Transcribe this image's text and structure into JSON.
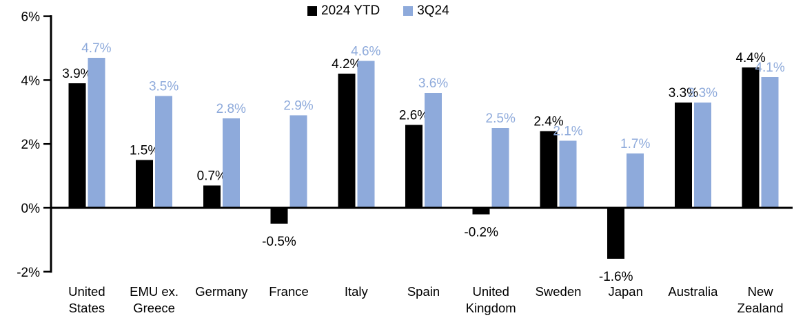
{
  "chart_data": {
    "type": "bar",
    "title": "",
    "xlabel": "",
    "ylabel": "",
    "ylim": [
      -2,
      6
    ],
    "grid": false,
    "legend_position": "top-center",
    "axis_color": "#000000",
    "background_color": "#ffffff",
    "yticks": [
      {
        "value": 6,
        "label": "6%"
      },
      {
        "value": 4,
        "label": "4%"
      },
      {
        "value": 2,
        "label": "2%"
      },
      {
        "value": 0,
        "label": "0%"
      },
      {
        "value": -2,
        "label": "-2%"
      }
    ],
    "categories": [
      "United States",
      "EMU ex. Greece",
      "Germany",
      "France",
      "Italy",
      "Spain",
      "United Kingdom",
      "Sweden",
      "Japan",
      "Australia",
      "New Zealand"
    ],
    "category_label_lines": [
      [
        "United",
        "States"
      ],
      [
        "EMU ex.",
        "Greece"
      ],
      [
        "Germany"
      ],
      [
        "France"
      ],
      [
        "Italy"
      ],
      [
        "Spain"
      ],
      [
        "United",
        "Kingdom"
      ],
      [
        "Sweden"
      ],
      [
        "Japan"
      ],
      [
        "Australia"
      ],
      [
        "New",
        "Zealand"
      ]
    ],
    "series": [
      {
        "name": "2024 YTD",
        "color": "#000000",
        "values": [
          3.9,
          1.5,
          0.7,
          -0.5,
          4.2,
          2.6,
          -0.2,
          2.4,
          -1.6,
          3.3,
          4.4
        ],
        "labels": [
          "3.9%",
          "1.5%",
          "0.7%",
          "-0.5%",
          "4.2%",
          "2.6%",
          "-0.2%",
          "2.4%",
          "-1.6%",
          "3.3%",
          "4.4%"
        ]
      },
      {
        "name": "3Q24",
        "color": "#8EAADB",
        "values": [
          4.7,
          3.5,
          2.8,
          2.9,
          4.6,
          3.6,
          2.5,
          2.1,
          1.7,
          3.3,
          4.1
        ],
        "labels": [
          "4.7%",
          "3.5%",
          "2.8%",
          "2.9%",
          "4.6%",
          "3.6%",
          "2.5%",
          "2.1%",
          "1.7%",
          "3.3%",
          "4.1%"
        ]
      }
    ]
  }
}
